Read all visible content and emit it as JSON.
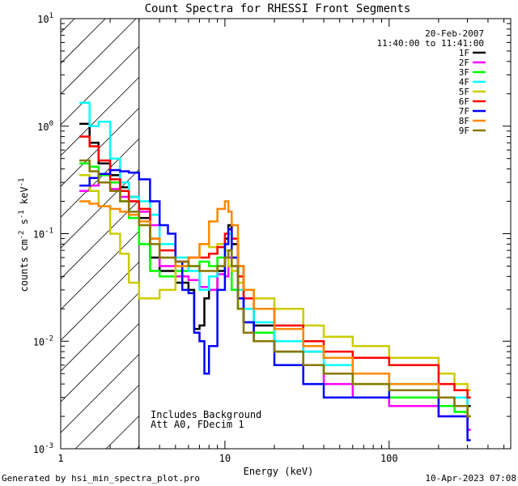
{
  "chart_data": {
    "type": "line",
    "title": "Count Spectra for RHESSI Front Segments",
    "xlabel": "Energy (keV)",
    "ylabel_parts": [
      "counts cm",
      "-2",
      " s",
      "-1",
      " keV",
      "-1"
    ],
    "xscale": "log",
    "yscale": "log",
    "xlim": [
      1,
      550
    ],
    "ylim": [
      0.001,
      10
    ],
    "x_ticks": [
      {
        "value": 1,
        "label": "1"
      },
      {
        "value": 10,
        "label": "10"
      },
      {
        "value": 100,
        "label": "100"
      }
    ],
    "y_ticks": [
      {
        "value": 0.001,
        "base": "10",
        "exp": "-3"
      },
      {
        "value": 0.01,
        "base": "10",
        "exp": "-2"
      },
      {
        "value": 0.1,
        "base": "10",
        "exp": "-1"
      },
      {
        "value": 1,
        "base": "10",
        "exp": "0"
      },
      {
        "value": 10,
        "base": "10",
        "exp": "1"
      }
    ],
    "date": "20-Feb-2007",
    "time_range": "11:40:00 to 11:41:00",
    "notes": [
      "Includes Background",
      "Att A0, FDecim 1"
    ],
    "shaded_region_kev": [
      1,
      3
    ],
    "series": [
      {
        "name": "1F",
        "color": "#000000",
        "x": [
          1.3,
          1.5,
          1.7,
          2,
          2.3,
          2.6,
          3,
          3.5,
          4,
          5,
          6,
          6.5,
          7,
          7.5,
          8,
          9,
          10,
          10.5,
          11,
          12,
          13,
          15,
          20,
          30,
          40,
          60,
          100,
          200,
          250,
          300
        ],
        "y": [
          1.05,
          0.7,
          0.45,
          0.35,
          0.27,
          0.22,
          0.14,
          0.06,
          0.045,
          0.035,
          0.03,
          0.013,
          0.014,
          0.025,
          0.03,
          0.045,
          0.09,
          0.12,
          0.08,
          0.05,
          0.02,
          0.014,
          0.01,
          0.008,
          0.007,
          0.005,
          0.0035,
          0.003,
          0.003,
          0.0025
        ]
      },
      {
        "name": "2F",
        "color": "#FF00FF",
        "x": [
          1.3,
          1.5,
          1.7,
          2,
          2.3,
          2.6,
          3,
          3.5,
          4,
          5,
          6,
          7,
          8,
          9,
          10,
          10.5,
          11,
          12,
          13,
          15,
          20,
          30,
          40,
          60,
          100,
          200,
          250,
          300
        ],
        "y": [
          0.25,
          0.28,
          0.3,
          0.26,
          0.22,
          0.2,
          0.16,
          0.12,
          0.05,
          0.04,
          0.037,
          0.032,
          0.03,
          0.042,
          0.04,
          0.06,
          0.05,
          0.025,
          0.015,
          0.012,
          0.008,
          0.006,
          0.004,
          0.003,
          0.0025,
          0.002,
          0.002,
          0.0015
        ]
      },
      {
        "name": "3F",
        "color": "#00FF00",
        "x": [
          1.3,
          1.5,
          1.7,
          2,
          2.3,
          2.6,
          3,
          3.5,
          4,
          5,
          6,
          7,
          8,
          9,
          10,
          10.5,
          11,
          12,
          13,
          15,
          20,
          30,
          40,
          60,
          100,
          200,
          250,
          300
        ],
        "y": [
          0.45,
          0.42,
          0.35,
          0.3,
          0.2,
          0.14,
          0.08,
          0.045,
          0.04,
          0.045,
          0.05,
          0.055,
          0.05,
          0.06,
          0.07,
          0.05,
          0.03,
          0.02,
          0.015,
          0.012,
          0.008,
          0.006,
          0.005,
          0.004,
          0.003,
          0.0025,
          0.0022,
          0.002
        ]
      },
      {
        "name": "4F",
        "color": "#00FFFF",
        "x": [
          1.3,
          1.5,
          1.7,
          2,
          2.3,
          2.6,
          3,
          3.5,
          4,
          5,
          6,
          7,
          8,
          9,
          10,
          10.5,
          11,
          12,
          13,
          15,
          20,
          30,
          40,
          60,
          100,
          200,
          250,
          300
        ],
        "y": [
          1.65,
          1.0,
          1.1,
          0.5,
          0.3,
          0.22,
          0.2,
          0.15,
          0.08,
          0.06,
          0.045,
          0.03,
          0.04,
          0.05,
          0.08,
          0.1,
          0.06,
          0.03,
          0.02,
          0.015,
          0.01,
          0.008,
          0.006,
          0.005,
          0.004,
          0.003,
          0.003,
          0.002
        ]
      },
      {
        "name": "5F",
        "color": "#CCCC00",
        "x": [
          1.3,
          1.5,
          1.7,
          2,
          2.3,
          2.6,
          3,
          3.5,
          4,
          5,
          6,
          7,
          8,
          9,
          10,
          10.5,
          11,
          12,
          13,
          15,
          20,
          30,
          40,
          60,
          100,
          200,
          250,
          300
        ],
        "y": [
          0.35,
          0.25,
          0.18,
          0.1,
          0.065,
          0.035,
          0.025,
          0.025,
          0.03,
          0.05,
          0.06,
          0.08,
          0.075,
          0.08,
          0.07,
          0.05,
          0.045,
          0.035,
          0.03,
          0.025,
          0.02,
          0.014,
          0.011,
          0.009,
          0.007,
          0.005,
          0.004,
          0.0035
        ]
      },
      {
        "name": "6F",
        "color": "#FF0000",
        "x": [
          1.3,
          1.5,
          1.7,
          2,
          2.3,
          2.6,
          3,
          3.5,
          4,
          5,
          6,
          7,
          8,
          9,
          10,
          10.5,
          11,
          12,
          13,
          15,
          20,
          30,
          40,
          60,
          100,
          200,
          250,
          300
        ],
        "y": [
          0.8,
          0.65,
          0.48,
          0.32,
          0.25,
          0.2,
          0.17,
          0.09,
          0.07,
          0.055,
          0.06,
          0.06,
          0.065,
          0.075,
          0.1,
          0.11,
          0.09,
          0.04,
          0.025,
          0.02,
          0.014,
          0.01,
          0.008,
          0.007,
          0.006,
          0.004,
          0.0035,
          0.003
        ]
      },
      {
        "name": "7F",
        "color": "#0000FF",
        "x": [
          1.3,
          1.5,
          1.7,
          2,
          2.3,
          2.6,
          3,
          3.5,
          4,
          4.5,
          5,
          5.5,
          6,
          6.5,
          7,
          7.5,
          8,
          9,
          10,
          10.5,
          11,
          12,
          13,
          15,
          20,
          30,
          40,
          60,
          100,
          200,
          250,
          300
        ],
        "y": [
          0.28,
          0.33,
          0.36,
          0.39,
          0.38,
          0.37,
          0.32,
          0.2,
          0.12,
          0.1,
          0.055,
          0.03,
          0.028,
          0.012,
          0.01,
          0.005,
          0.009,
          0.03,
          0.08,
          0.11,
          0.06,
          0.025,
          0.015,
          0.01,
          0.006,
          0.004,
          0.003,
          0.003,
          0.0035,
          0.002,
          0.002,
          0.0012
        ]
      },
      {
        "name": "8F",
        "color": "#FF8800",
        "x": [
          1.3,
          1.5,
          1.7,
          2,
          2.3,
          2.6,
          3,
          3.5,
          4,
          5,
          6,
          7,
          8,
          9,
          10,
          10.5,
          11,
          12,
          13,
          15,
          20,
          30,
          40,
          60,
          100,
          200,
          250,
          300
        ],
        "y": [
          0.2,
          0.19,
          0.18,
          0.17,
          0.16,
          0.15,
          0.13,
          0.09,
          0.06,
          0.05,
          0.06,
          0.08,
          0.13,
          0.17,
          0.2,
          0.16,
          0.12,
          0.05,
          0.03,
          0.02,
          0.013,
          0.009,
          0.007,
          0.005,
          0.004,
          0.003,
          0.0025,
          0.002
        ]
      },
      {
        "name": "9F",
        "color": "#887700",
        "x": [
          1.3,
          1.5,
          1.7,
          2,
          2.3,
          2.6,
          3,
          3.5,
          4,
          5,
          6,
          7,
          8,
          9,
          10,
          10.5,
          11,
          12,
          13,
          15,
          20,
          30,
          40,
          60,
          100,
          200,
          250,
          300
        ],
        "y": [
          0.48,
          0.38,
          0.3,
          0.25,
          0.2,
          0.16,
          0.12,
          0.08,
          0.06,
          0.055,
          0.05,
          0.045,
          0.045,
          0.05,
          0.06,
          0.07,
          0.05,
          0.02,
          0.012,
          0.01,
          0.008,
          0.006,
          0.005,
          0.004,
          0.0035,
          0.003,
          0.0025,
          0.002
        ]
      }
    ]
  },
  "footer": {
    "left": "Generated by hsi_min_spectra_plot.pro",
    "right": "10-Apr-2023 07:08"
  }
}
